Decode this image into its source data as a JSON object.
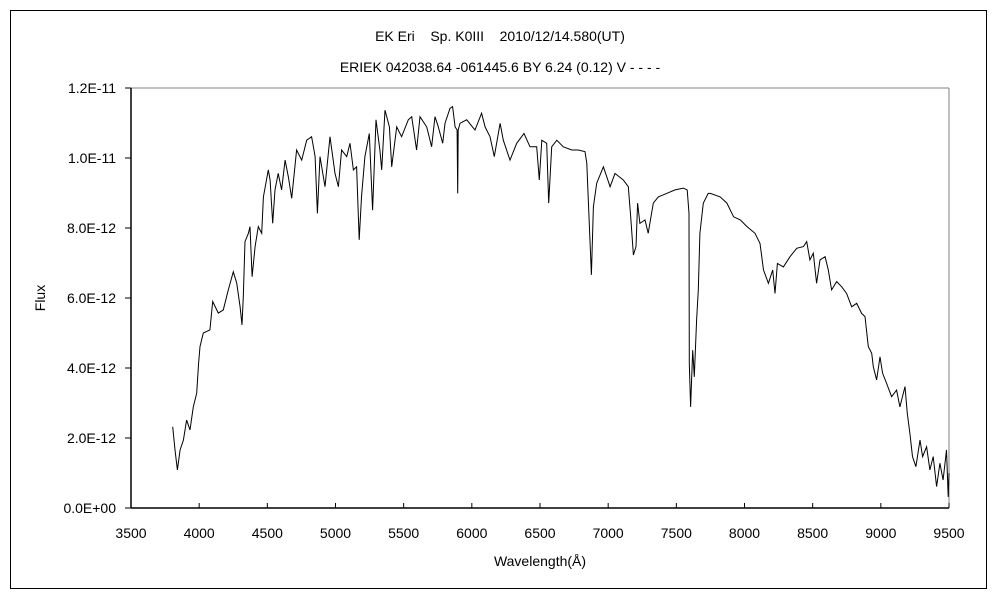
{
  "chart_data": {
    "type": "line",
    "title": "EK Eri    Sp. K0III    2010/12/14.580(UT)",
    "subtitle": "ERIEK 042038.64 -061445.6 BY 6.24 (0.12) V - - - -",
    "xlabel": "Wavelength(Å)",
    "ylabel": "Flux",
    "xlim": [
      3500,
      9500
    ],
    "ylim": [
      0,
      1.2e-11
    ],
    "xticks": [
      3500,
      4000,
      4500,
      5000,
      5500,
      6000,
      6500,
      7000,
      7500,
      8000,
      8500,
      9000,
      9500
    ],
    "xtick_labels": [
      "3500",
      "4000",
      "4500",
      "5000",
      "5500",
      "6000",
      "6500",
      "7000",
      "7500",
      "8000",
      "8500",
      "9000",
      "9500"
    ],
    "yticks": [
      0,
      2e-12,
      4e-12,
      6e-12,
      8e-12,
      1e-11,
      1.2e-11
    ],
    "ytick_labels": [
      "0.0E+00",
      "2.0E-12",
      "4.0E-12",
      "6.0E-12",
      "8.0E-12",
      "1.0E-11",
      "1.2E-11"
    ],
    "grid": false,
    "line_color": "#000000",
    "series": [
      {
        "points": [
          [
            3806,
            2.32e-12
          ],
          [
            3823,
            1.66e-12
          ],
          [
            3840,
            1.09e-12
          ],
          [
            3860,
            1.66e-12
          ],
          [
            3884,
            1.94e-12
          ],
          [
            3908,
            2.51e-12
          ],
          [
            3933,
            2.23e-12
          ],
          [
            3957,
            2.89e-12
          ],
          [
            3982,
            3.28e-12
          ],
          [
            3996,
            4.14e-12
          ],
          [
            4006,
            4.61e-12
          ],
          [
            4030,
            5e-12
          ],
          [
            4079,
            5.09e-12
          ],
          [
            4099,
            5.9e-12
          ],
          [
            4140,
            5.57e-12
          ],
          [
            4177,
            5.66e-12
          ],
          [
            4214,
            6.23e-12
          ],
          [
            4250,
            6.75e-12
          ],
          [
            4275,
            6.43e-12
          ],
          [
            4300,
            5.75e-12
          ],
          [
            4314,
            5.23e-12
          ],
          [
            4324,
            6.04e-12
          ],
          [
            4336,
            7.61e-12
          ],
          [
            4361,
            7.85e-12
          ],
          [
            4373,
            8.04e-12
          ],
          [
            4388,
            6.61e-12
          ],
          [
            4410,
            7.47e-12
          ],
          [
            4434,
            8.04e-12
          ],
          [
            4459,
            7.85e-12
          ],
          [
            4471,
            8.89e-12
          ],
          [
            4507,
            9.66e-12
          ],
          [
            4520,
            9.37e-12
          ],
          [
            4539,
            8.13e-12
          ],
          [
            4556,
            9.09e-12
          ],
          [
            4580,
            9.56e-12
          ],
          [
            4605,
            9.09e-12
          ],
          [
            4630,
            9.94e-12
          ],
          [
            4654,
            9.47e-12
          ],
          [
            4679,
            8.85e-12
          ],
          [
            4715,
            1.023e-11
          ],
          [
            4752,
            9.94e-12
          ],
          [
            4789,
            1.051e-11
          ],
          [
            4825,
            1.061e-11
          ],
          [
            4850,
            1.004e-11
          ],
          [
            4867,
            8.42e-12
          ],
          [
            4886,
            1.004e-11
          ],
          [
            4923,
            9.18e-12
          ],
          [
            4960,
            1.061e-11
          ],
          [
            4996,
            9.56e-12
          ],
          [
            5021,
            9.18e-12
          ],
          [
            5045,
            1.023e-11
          ],
          [
            5082,
            1.004e-11
          ],
          [
            5106,
            1.042e-11
          ],
          [
            5131,
            9.66e-12
          ],
          [
            5155,
            9.75e-12
          ],
          [
            5174,
            7.66e-12
          ],
          [
            5191,
            8.89e-12
          ],
          [
            5216,
            1.004e-11
          ],
          [
            5248,
            1.07e-11
          ],
          [
            5272,
            8.51e-12
          ],
          [
            5297,
            1.109e-11
          ],
          [
            5326,
            1.023e-11
          ],
          [
            5339,
            9.66e-12
          ],
          [
            5363,
            1.137e-11
          ],
          [
            5395,
            1.089e-11
          ],
          [
            5412,
            9.75e-12
          ],
          [
            5449,
            1.089e-11
          ],
          [
            5485,
            1.061e-11
          ],
          [
            5534,
            1.109e-11
          ],
          [
            5559,
            1.118e-11
          ],
          [
            5595,
            1.023e-11
          ],
          [
            5620,
            1.118e-11
          ],
          [
            5669,
            1.089e-11
          ],
          [
            5705,
            1.032e-11
          ],
          [
            5730,
            1.118e-11
          ],
          [
            5754,
            1.089e-11
          ],
          [
            5786,
            1.042e-11
          ],
          [
            5803,
            1.099e-11
          ],
          [
            5840,
            1.142e-11
          ],
          [
            5859,
            1.147e-11
          ],
          [
            5877,
            1.089e-11
          ],
          [
            5892,
            1.08e-11
          ],
          [
            5896,
            8.99e-12
          ],
          [
            5900,
            1.08e-11
          ],
          [
            5913,
            1.099e-11
          ],
          [
            5962,
            1.109e-11
          ],
          [
            6023,
            1.08e-11
          ],
          [
            6072,
            1.128e-11
          ],
          [
            6097,
            1.089e-11
          ],
          [
            6133,
            1.061e-11
          ],
          [
            6165,
            1.004e-11
          ],
          [
            6207,
            1.099e-11
          ],
          [
            6231,
            1.051e-11
          ],
          [
            6280,
            9.94e-12
          ],
          [
            6329,
            1.042e-11
          ],
          [
            6383,
            1.07e-11
          ],
          [
            6427,
            1.032e-11
          ],
          [
            6476,
            1.032e-11
          ],
          [
            6495,
            9.37e-12
          ],
          [
            6513,
            1.051e-11
          ],
          [
            6549,
            1.042e-11
          ],
          [
            6564,
            8.71e-12
          ],
          [
            6586,
            1.032e-11
          ],
          [
            6623,
            1.051e-11
          ],
          [
            6671,
            1.032e-11
          ],
          [
            6733,
            1.023e-11
          ],
          [
            6781,
            1.023e-11
          ],
          [
            6830,
            1.018e-11
          ],
          [
            6843,
            9.85e-12
          ],
          [
            6862,
            8.04e-12
          ],
          [
            6877,
            6.66e-12
          ],
          [
            6892,
            8.61e-12
          ],
          [
            6916,
            9.28e-12
          ],
          [
            6965,
            9.75e-12
          ],
          [
            7014,
            9.18e-12
          ],
          [
            7050,
            9.56e-12
          ],
          [
            7111,
            9.37e-12
          ],
          [
            7148,
            9.18e-12
          ],
          [
            7165,
            8.32e-12
          ],
          [
            7185,
            7.23e-12
          ],
          [
            7204,
            7.47e-12
          ],
          [
            7216,
            8.71e-12
          ],
          [
            7233,
            8.13e-12
          ],
          [
            7270,
            8.23e-12
          ],
          [
            7294,
            7.85e-12
          ],
          [
            7331,
            8.71e-12
          ],
          [
            7368,
            8.89e-12
          ],
          [
            7429,
            8.99e-12
          ],
          [
            7490,
            9.09e-12
          ],
          [
            7551,
            9.14e-12
          ],
          [
            7580,
            9.09e-12
          ],
          [
            7593,
            8.42e-12
          ],
          [
            7595,
            4.13e-12
          ],
          [
            7605,
            2.89e-12
          ],
          [
            7620,
            4.51e-12
          ],
          [
            7632,
            3.75e-12
          ],
          [
            7649,
            5.37e-12
          ],
          [
            7661,
            6.23e-12
          ],
          [
            7673,
            7.85e-12
          ],
          [
            7698,
            8.71e-12
          ],
          [
            7734,
            8.99e-12
          ],
          [
            7749,
            8.99e-12
          ],
          [
            7822,
            8.89e-12
          ],
          [
            7871,
            8.71e-12
          ],
          [
            7920,
            8.32e-12
          ],
          [
            7969,
            8.23e-12
          ],
          [
            8018,
            8.04e-12
          ],
          [
            8077,
            7.85e-12
          ],
          [
            8114,
            7.56e-12
          ],
          [
            8139,
            6.8e-12
          ],
          [
            8175,
            6.42e-12
          ],
          [
            8207,
            6.8e-12
          ],
          [
            8224,
            6.13e-12
          ],
          [
            8241,
            6.99e-12
          ],
          [
            8285,
            6.89e-12
          ],
          [
            8334,
            7.18e-12
          ],
          [
            8383,
            7.42e-12
          ],
          [
            8432,
            7.47e-12
          ],
          [
            8456,
            7.61e-12
          ],
          [
            8480,
            7.09e-12
          ],
          [
            8505,
            7.28e-12
          ],
          [
            8529,
            6.42e-12
          ],
          [
            8554,
            7.09e-12
          ],
          [
            8591,
            7.18e-12
          ],
          [
            8615,
            6.8e-12
          ],
          [
            8639,
            6.23e-12
          ],
          [
            8676,
            6.47e-12
          ],
          [
            8713,
            6.32e-12
          ],
          [
            8749,
            6.13e-12
          ],
          [
            8786,
            5.75e-12
          ],
          [
            8823,
            5.85e-12
          ],
          [
            8859,
            5.56e-12
          ],
          [
            8884,
            5.47e-12
          ],
          [
            8908,
            4.61e-12
          ],
          [
            8933,
            4.42e-12
          ],
          [
            8945,
            4.04e-12
          ],
          [
            8969,
            3.66e-12
          ],
          [
            8994,
            4.32e-12
          ],
          [
            9013,
            3.85e-12
          ],
          [
            9042,
            3.56e-12
          ],
          [
            9079,
            3.18e-12
          ],
          [
            9116,
            3.37e-12
          ],
          [
            9140,
            2.89e-12
          ],
          [
            9177,
            3.47e-12
          ],
          [
            9194,
            2.7e-12
          ],
          [
            9213,
            2.13e-12
          ],
          [
            9232,
            1.47e-12
          ],
          [
            9257,
            1.18e-12
          ],
          [
            9287,
            1.94e-12
          ],
          [
            9306,
            1.47e-12
          ],
          [
            9336,
            1.75e-12
          ],
          [
            9360,
            1.09e-12
          ],
          [
            9384,
            1.47e-12
          ],
          [
            9409,
            6.1e-13
          ],
          [
            9433,
            1.28e-12
          ],
          [
            9457,
            8e-13
          ],
          [
            9482,
            1.66e-12
          ],
          [
            9494,
            3.2e-13
          ],
          [
            9500,
            1e-12
          ]
        ]
      }
    ]
  }
}
